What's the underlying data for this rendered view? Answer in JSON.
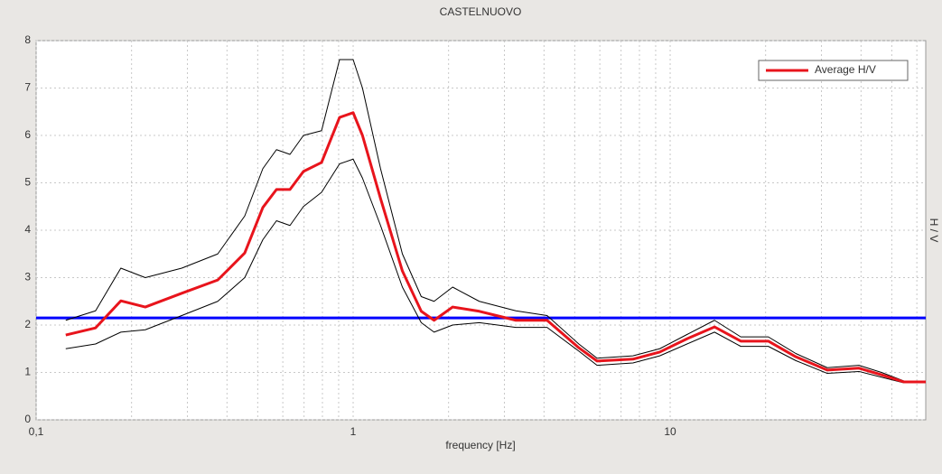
{
  "chart_data": {
    "type": "line",
    "title": "CASTELNUOVO",
    "x_label": "frequency [Hz]",
    "y_label": "H / V",
    "log_x": true,
    "grid": true,
    "legend": "top-right",
    "xlim": [
      0.1,
      64
    ],
    "ylim": [
      0,
      8
    ],
    "xticks": [
      {
        "value": 0.1,
        "label": "0,1"
      },
      1,
      10
    ],
    "xminorticks": [
      0.2,
      0.3,
      0.4,
      0.5,
      0.6,
      0.7,
      0.8,
      0.9,
      2,
      3,
      4,
      5,
      6,
      7,
      8,
      9,
      20,
      30,
      40,
      50,
      60
    ],
    "yticks": [
      0,
      1,
      2,
      3,
      4,
      5,
      6,
      7,
      8
    ],
    "hlines": [
      {
        "value": 2.15,
        "color": "#0000ff"
      }
    ],
    "x": [
      0.124,
      0.154,
      0.185,
      0.221,
      0.288,
      0.374,
      0.455,
      0.519,
      0.573,
      0.632,
      0.697,
      0.795,
      0.906,
      1.0,
      1.07,
      1.22,
      1.43,
      1.64,
      1.8,
      2.06,
      2.5,
      3.26,
      4.09,
      5.15,
      5.88,
      7.63,
      9.27,
      11.3,
      13.8,
      16.7,
      20.4,
      24.9,
      31.3,
      39.4,
      46.4,
      54.6,
      64
    ],
    "series": [
      {
        "color": "#000000",
        "width": 1,
        "values": [
          2.1,
          2.3,
          3.2,
          3.0,
          3.2,
          3.5,
          4.3,
          5.3,
          5.7,
          5.6,
          6.0,
          6.1,
          7.6,
          7.6,
          7.0,
          5.3,
          3.5,
          2.6,
          2.5,
          2.8,
          2.5,
          2.3,
          2.2,
          1.6,
          1.3,
          1.35,
          1.5,
          1.8,
          2.1,
          1.75,
          1.75,
          1.4,
          1.1,
          1.15,
          1.0,
          0.82,
          0.82
        ]
      },
      {
        "color": "#000000",
        "width": 1,
        "values": [
          1.5,
          1.6,
          1.85,
          1.9,
          2.2,
          2.5,
          3.0,
          3.8,
          4.2,
          4.1,
          4.5,
          4.8,
          5.4,
          5.5,
          5.1,
          4.1,
          2.8,
          2.05,
          1.85,
          2.0,
          2.05,
          1.95,
          1.95,
          1.45,
          1.15,
          1.2,
          1.35,
          1.6,
          1.85,
          1.55,
          1.55,
          1.25,
          0.98,
          1.02,
          0.9,
          0.78,
          0.78
        ]
      },
      {
        "name": "Average H/V",
        "color": "#e8141c",
        "width": 3,
        "values": [
          1.79,
          1.94,
          2.51,
          2.38,
          2.67,
          2.95,
          3.52,
          4.48,
          4.86,
          4.86,
          5.24,
          5.43,
          6.38,
          6.48,
          6.0,
          4.67,
          3.14,
          2.29,
          2.1,
          2.38,
          2.29,
          2.1,
          2.1,
          1.52,
          1.24,
          1.28,
          1.43,
          1.71,
          1.96,
          1.66,
          1.66,
          1.33,
          1.05,
          1.09,
          0.95,
          0.8,
          0.8
        ]
      }
    ]
  }
}
